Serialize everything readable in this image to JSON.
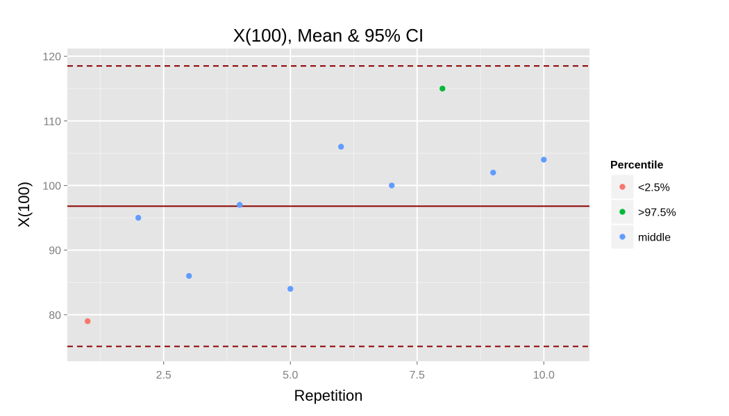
{
  "chart_data": {
    "type": "scatter",
    "title": "X(100), Mean & 95% CI",
    "xlabel": "Repetition",
    "ylabel": "X(100)",
    "xlim": [
      0.6,
      10.9
    ],
    "ylim": [
      72.8,
      121.2
    ],
    "x_ticks": [
      2.5,
      5.0,
      7.5,
      10.0
    ],
    "x_tick_labels": [
      "2.5",
      "5.0",
      "7.5",
      "10.0"
    ],
    "y_ticks": [
      80,
      90,
      100,
      110,
      120
    ],
    "y_tick_labels": [
      "80",
      "90",
      "100",
      "110",
      "120"
    ],
    "grid": true,
    "legend": {
      "title": "Percentile",
      "placement": "right",
      "entries": [
        {
          "key": "low",
          "label": "<2.5%",
          "color": "#f8766d"
        },
        {
          "key": "high",
          "label": ">97.5%",
          "color": "#00ba38"
        },
        {
          "key": "mid",
          "label": "middle",
          "color": "#619cff"
        }
      ]
    },
    "points": [
      {
        "x": 1,
        "y": 79,
        "group": "low"
      },
      {
        "x": 2,
        "y": 95,
        "group": "mid"
      },
      {
        "x": 3,
        "y": 86,
        "group": "mid"
      },
      {
        "x": 4,
        "y": 97,
        "group": "mid"
      },
      {
        "x": 5,
        "y": 84,
        "group": "mid"
      },
      {
        "x": 6,
        "y": 106,
        "group": "mid"
      },
      {
        "x": 7,
        "y": 100,
        "group": "mid"
      },
      {
        "x": 8,
        "y": 115,
        "group": "high"
      },
      {
        "x": 9,
        "y": 102,
        "group": "mid"
      },
      {
        "x": 10,
        "y": 104,
        "group": "mid"
      }
    ],
    "reference_lines": [
      {
        "kind": "mean",
        "y": 96.8,
        "style": "solid",
        "color": "#8b0000"
      },
      {
        "kind": "ci-upper",
        "y": 118.5,
        "style": "dashed",
        "color": "#8b0000"
      },
      {
        "kind": "ci-lower",
        "y": 75.1,
        "style": "dashed",
        "color": "#8b0000"
      }
    ]
  }
}
